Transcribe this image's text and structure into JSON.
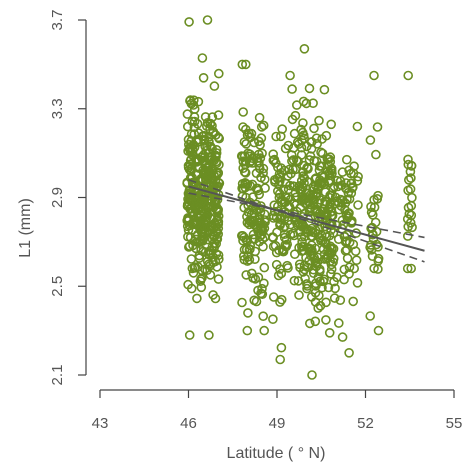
{
  "chart_data": {
    "type": "scatter",
    "title": "",
    "xlabel": "Latitude ( ° N)",
    "ylabel": "L1 (mm)",
    "xlim": [
      43,
      55
    ],
    "ylim": [
      2.1,
      3.7
    ],
    "x_ticks": [
      43,
      46,
      49,
      52,
      55
    ],
    "y_ticks": [
      2.1,
      2.5,
      2.9,
      3.3,
      3.7
    ],
    "x_tick_labels": [
      "43",
      "46",
      "49",
      "52",
      "55"
    ],
    "y_tick_labels": [
      "2.1",
      "2.5",
      "2.9",
      "3.3",
      "3.7"
    ],
    "grid": false,
    "legend": "none",
    "colors": {
      "points": "#6b8e23",
      "fit": "#555555"
    },
    "points_note_free": true,
    "clusters": [
      {
        "x": 46.5,
        "n": 380,
        "mean": 2.93,
        "sd": 0.2,
        "ymin": 2.28,
        "ymax": 3.7,
        "xspread": 0.55
      },
      {
        "x": 48.2,
        "n": 150,
        "mean": 2.83,
        "sd": 0.22,
        "ymin": 2.3,
        "ymax": 3.5,
        "xspread": 0.4
      },
      {
        "x": 49.3,
        "n": 120,
        "mean": 2.85,
        "sd": 0.22,
        "ymin": 2.17,
        "ymax": 3.45,
        "xspread": 0.45
      },
      {
        "x": 50.3,
        "n": 250,
        "mean": 2.8,
        "sd": 0.22,
        "ymin": 2.1,
        "ymax": 3.57,
        "xspread": 0.55
      },
      {
        "x": 51.3,
        "n": 90,
        "mean": 2.78,
        "sd": 0.18,
        "ymin": 2.2,
        "ymax": 3.22,
        "xspread": 0.45
      },
      {
        "x": 52.3,
        "n": 30,
        "mean": 2.75,
        "sd": 0.2,
        "ymin": 2.3,
        "ymax": 3.45,
        "xspread": 0.15
      },
      {
        "x": 53.5,
        "n": 22,
        "mean": 2.85,
        "sd": 0.18,
        "ymin": 2.58,
        "ymax": 3.45,
        "xspread": 0.08
      }
    ],
    "fit_lines": [
      {
        "style": "solid",
        "x": [
          46,
          54
        ],
        "y": [
          2.95,
          2.66
        ]
      },
      {
        "style": "dashed",
        "x": [
          46,
          54
        ],
        "y": [
          2.92,
          2.72
        ]
      },
      {
        "style": "dashed",
        "x": [
          46,
          54
        ],
        "y": [
          2.98,
          2.61
        ]
      }
    ]
  }
}
